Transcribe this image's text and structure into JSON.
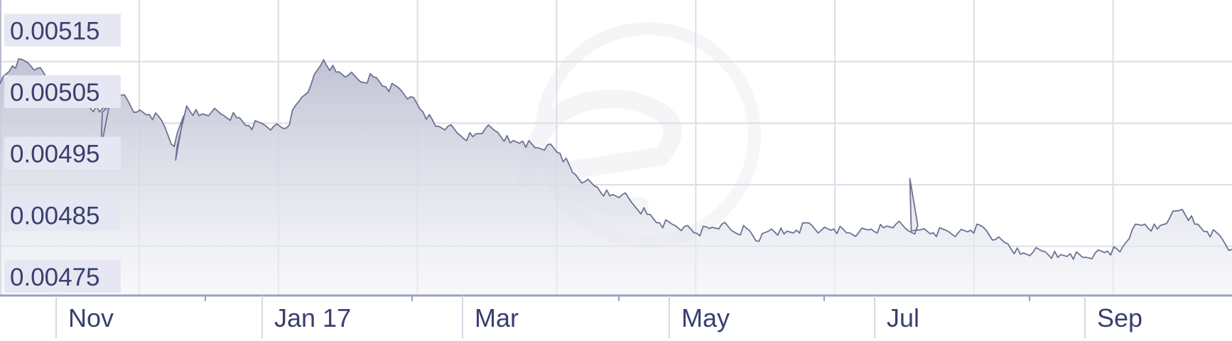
{
  "chart_data": {
    "type": "area",
    "title": "",
    "xlabel": "",
    "ylabel": "",
    "x_tick_labels": [
      "Nov",
      "Jan 17",
      "Mar",
      "May",
      "Jul",
      "Sep"
    ],
    "y_tick_labels": [
      "0.00515",
      "0.00505",
      "0.00495",
      "0.00485",
      "0.00475"
    ],
    "y_tick_values": [
      0.00515,
      0.00505,
      0.00495,
      0.00485,
      0.00475
    ],
    "ylim": [
      0.00472,
      0.0052
    ],
    "grid": true,
    "legend": "none",
    "colors": {
      "line": "#6b7394",
      "fill_top": "#bfc2d4",
      "fill_bottom": "#f3f4f8",
      "grid": "#dcdde6",
      "label_bg": "#e6e7f2",
      "label_text": "#3a3f6e"
    },
    "series": [
      {
        "values": [
          0.005064,
          0.005093,
          0.005101,
          0.005089,
          0.005069,
          0.005059,
          0.005062,
          0.005031,
          0.005018,
          0.005032,
          0.005046,
          0.005018,
          0.005014,
          0.005004,
          0.004962,
          0.005028,
          0.005012,
          0.005018,
          0.005012,
          0.005009,
          0.004996,
          0.005,
          0.004995,
          0.004992,
          0.005035,
          0.005063,
          0.005103,
          0.005083,
          0.005078,
          0.005067,
          0.005075,
          0.005059,
          0.005058,
          0.005043,
          0.005018,
          0.004995,
          0.004995,
          0.00498,
          0.004978,
          0.004991,
          0.004985,
          0.004968,
          0.004971,
          0.00496,
          0.004965,
          0.004951,
          0.00492,
          0.004905,
          0.004896,
          0.004882,
          0.004884,
          0.004865,
          0.004852,
          0.004838,
          0.004836,
          0.004832,
          0.004821,
          0.004829,
          0.004836,
          0.004823,
          0.004829,
          0.004808,
          0.004828,
          0.00482,
          0.004826,
          0.004838,
          0.004826,
          0.004828,
          0.004822,
          0.004822,
          0.004828,
          0.00483,
          0.004836,
          0.004825,
          0.004827,
          0.004822,
          0.004826,
          0.004822,
          0.004826,
          0.004831,
          0.004811,
          0.004804,
          0.004787,
          0.00479,
          0.004791,
          0.004782,
          0.004788,
          0.004782,
          0.004789,
          0.004792,
          0.004791,
          0.004828,
          0.004836,
          0.004828,
          0.004846,
          0.00486,
          0.004836,
          0.004824,
          0.004818,
          0.004795
        ],
        "spikes": [
          {
            "index": 8,
            "value": 0.00496
          },
          {
            "index": 14,
            "value": 0.00494
          },
          {
            "index": 73,
            "value": 0.00491
          }
        ]
      }
    ]
  }
}
